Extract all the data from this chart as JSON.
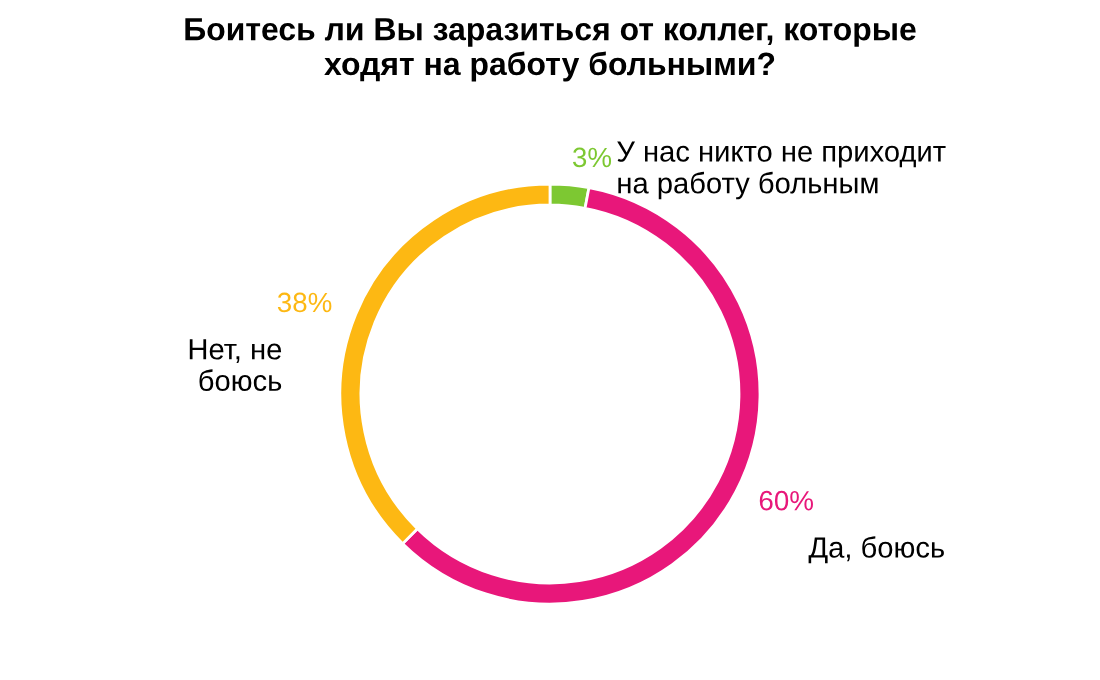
{
  "chart_data": {
    "type": "donut",
    "title": "Боитесь ли Вы заразиться от коллег, которые\nходят на работу больными?",
    "categories": [
      "У нас никто не приходит\nна работу больным",
      "Да, боюсь",
      "Нет, не\nбоюсь"
    ],
    "values": [
      3,
      60,
      38
    ],
    "colors": [
      "#7dc832",
      "#e8177a",
      "#fdb813"
    ],
    "value_labels": [
      "3%",
      "60%",
      "38%"
    ]
  }
}
